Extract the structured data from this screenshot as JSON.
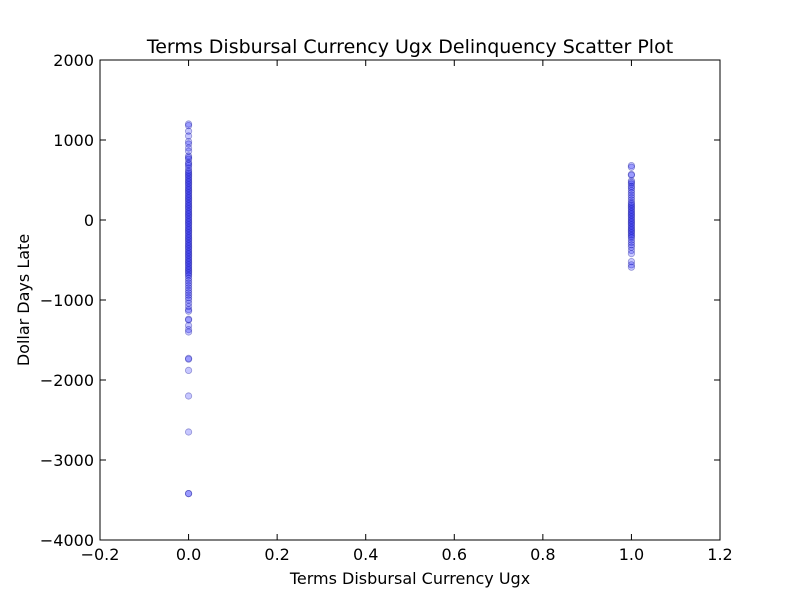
{
  "chart_data": {
    "type": "scatter",
    "title": "Terms Disbursal Currency Ugx Delinquency Scatter Plot",
    "xlabel": "Terms Disbursal Currency Ugx",
    "ylabel": "Dollar Days Late",
    "xlim": [
      -0.2,
      1.2
    ],
    "ylim": [
      -4000,
      2000
    ],
    "x_ticks": [
      -0.2,
      0.0,
      0.2,
      0.4,
      0.6,
      0.8,
      1.0,
      1.2
    ],
    "x_tick_labels": [
      "−0.2",
      "0.0",
      "0.2",
      "0.4",
      "0.6",
      "0.8",
      "1.0",
      "1.2"
    ],
    "y_ticks": [
      -4000,
      -3000,
      -2000,
      -1000,
      0,
      1000,
      2000
    ],
    "y_tick_labels": [
      "−4000",
      "−3000",
      "−2000",
      "−1000",
      "0",
      "1000",
      "2000"
    ],
    "grid": false,
    "marker_color": "#0000ff",
    "marker_edge_color": "#00008b",
    "marker_opacity": 0.22,
    "series": [
      {
        "values": [
          {
            "x": 0,
            "y": 1200
          },
          {
            "x": 0,
            "y": 1180
          },
          {
            "x": 0,
            "y": 1110
          },
          {
            "x": 0,
            "y": 1050
          },
          {
            "x": 0,
            "y": 980
          },
          {
            "x": 0,
            "y": 950
          },
          {
            "x": 0,
            "y": 900
          },
          {
            "x": 0,
            "y": 860
          },
          {
            "x": 0,
            "y": 800
          },
          {
            "x": 0,
            "y": 780
          },
          {
            "x": 0,
            "y": 760
          },
          {
            "x": 0,
            "y": 720
          },
          {
            "x": 0,
            "y": 700
          },
          {
            "x": 0,
            "y": 680
          },
          {
            "x": 0,
            "y": 650
          },
          {
            "x": 0,
            "y": 620
          },
          {
            "x": 0,
            "y": 600
          },
          {
            "x": 0,
            "y": 580
          },
          {
            "x": 0,
            "y": 560
          },
          {
            "x": 0,
            "y": 540
          },
          {
            "x": 0,
            "y": 520
          },
          {
            "x": 0,
            "y": 500
          },
          {
            "x": 0,
            "y": 480
          },
          {
            "x": 0,
            "y": 460
          },
          {
            "x": 0,
            "y": 440
          },
          {
            "x": 0,
            "y": 420
          },
          {
            "x": 0,
            "y": 400
          },
          {
            "x": 0,
            "y": 380
          },
          {
            "x": 0,
            "y": 360
          },
          {
            "x": 0,
            "y": 340
          },
          {
            "x": 0,
            "y": 320
          },
          {
            "x": 0,
            "y": 300
          },
          {
            "x": 0,
            "y": 280
          },
          {
            "x": 0,
            "y": 260
          },
          {
            "x": 0,
            "y": 240
          },
          {
            "x": 0,
            "y": 220
          },
          {
            "x": 0,
            "y": 200
          },
          {
            "x": 0,
            "y": 180
          },
          {
            "x": 0,
            "y": 160
          },
          {
            "x": 0,
            "y": 140
          },
          {
            "x": 0,
            "y": 120
          },
          {
            "x": 0,
            "y": 100
          },
          {
            "x": 0,
            "y": 80
          },
          {
            "x": 0,
            "y": 60
          },
          {
            "x": 0,
            "y": 40
          },
          {
            "x": 0,
            "y": 20
          },
          {
            "x": 0,
            "y": 0
          },
          {
            "x": 0,
            "y": -20
          },
          {
            "x": 0,
            "y": -40
          },
          {
            "x": 0,
            "y": -60
          },
          {
            "x": 0,
            "y": -80
          },
          {
            "x": 0,
            "y": -100
          },
          {
            "x": 0,
            "y": -120
          },
          {
            "x": 0,
            "y": -140
          },
          {
            "x": 0,
            "y": -160
          },
          {
            "x": 0,
            "y": -180
          },
          {
            "x": 0,
            "y": -200
          },
          {
            "x": 0,
            "y": -220
          },
          {
            "x": 0,
            "y": -240
          },
          {
            "x": 0,
            "y": -260
          },
          {
            "x": 0,
            "y": -280
          },
          {
            "x": 0,
            "y": -300
          },
          {
            "x": 0,
            "y": -320
          },
          {
            "x": 0,
            "y": -340
          },
          {
            "x": 0,
            "y": -360
          },
          {
            "x": 0,
            "y": -380
          },
          {
            "x": 0,
            "y": -400
          },
          {
            "x": 0,
            "y": -420
          },
          {
            "x": 0,
            "y": -440
          },
          {
            "x": 0,
            "y": -460
          },
          {
            "x": 0,
            "y": -480
          },
          {
            "x": 0,
            "y": -500
          },
          {
            "x": 0,
            "y": -520
          },
          {
            "x": 0,
            "y": -540
          },
          {
            "x": 0,
            "y": -560
          },
          {
            "x": 0,
            "y": -580
          },
          {
            "x": 0,
            "y": -600
          },
          {
            "x": 0,
            "y": -620
          },
          {
            "x": 0,
            "y": -640
          },
          {
            "x": 0,
            "y": -660
          },
          {
            "x": 0,
            "y": -680
          },
          {
            "x": 0,
            "y": -700
          },
          {
            "x": 0,
            "y": -730
          },
          {
            "x": 0,
            "y": -760
          },
          {
            "x": 0,
            "y": -790
          },
          {
            "x": 0,
            "y": -820
          },
          {
            "x": 0,
            "y": -850
          },
          {
            "x": 0,
            "y": -880
          },
          {
            "x": 0,
            "y": -910
          },
          {
            "x": 0,
            "y": -940
          },
          {
            "x": 0,
            "y": -970
          },
          {
            "x": 0,
            "y": -1000
          },
          {
            "x": 0,
            "y": -1040
          },
          {
            "x": 0,
            "y": -1080
          },
          {
            "x": 0,
            "y": -1120
          },
          {
            "x": 0,
            "y": -1140
          },
          {
            "x": 0,
            "y": -1240
          },
          {
            "x": 0,
            "y": -1250
          },
          {
            "x": 0,
            "y": -1320
          },
          {
            "x": 0,
            "y": -1370
          },
          {
            "x": 0,
            "y": -1400
          },
          {
            "x": 0,
            "y": -1730
          },
          {
            "x": 0,
            "y": -1740
          },
          {
            "x": 0,
            "y": -1880
          },
          {
            "x": 0,
            "y": -2200
          },
          {
            "x": 0,
            "y": -2650
          },
          {
            "x": 0,
            "y": -3420
          },
          {
            "x": 0,
            "y": -3420
          },
          {
            "x": 1,
            "y": 680
          },
          {
            "x": 1,
            "y": 660
          },
          {
            "x": 1,
            "y": 570
          },
          {
            "x": 1,
            "y": 560
          },
          {
            "x": 1,
            "y": 490
          },
          {
            "x": 1,
            "y": 470
          },
          {
            "x": 1,
            "y": 450
          },
          {
            "x": 1,
            "y": 420
          },
          {
            "x": 1,
            "y": 400
          },
          {
            "x": 1,
            "y": 370
          },
          {
            "x": 1,
            "y": 340
          },
          {
            "x": 1,
            "y": 310
          },
          {
            "x": 1,
            "y": 280
          },
          {
            "x": 1,
            "y": 250
          },
          {
            "x": 1,
            "y": 220
          },
          {
            "x": 1,
            "y": 200
          },
          {
            "x": 1,
            "y": 180
          },
          {
            "x": 1,
            "y": 160
          },
          {
            "x": 1,
            "y": 140
          },
          {
            "x": 1,
            "y": 120
          },
          {
            "x": 1,
            "y": 100
          },
          {
            "x": 1,
            "y": 80
          },
          {
            "x": 1,
            "y": 60
          },
          {
            "x": 1,
            "y": 40
          },
          {
            "x": 1,
            "y": 20
          },
          {
            "x": 1,
            "y": 0
          },
          {
            "x": 1,
            "y": -20
          },
          {
            "x": 1,
            "y": -40
          },
          {
            "x": 1,
            "y": -60
          },
          {
            "x": 1,
            "y": -80
          },
          {
            "x": 1,
            "y": -100
          },
          {
            "x": 1,
            "y": -120
          },
          {
            "x": 1,
            "y": -140
          },
          {
            "x": 1,
            "y": -160
          },
          {
            "x": 1,
            "y": -180
          },
          {
            "x": 1,
            "y": -200
          },
          {
            "x": 1,
            "y": -220
          },
          {
            "x": 1,
            "y": -250
          },
          {
            "x": 1,
            "y": -280
          },
          {
            "x": 1,
            "y": -310
          },
          {
            "x": 1,
            "y": -340
          },
          {
            "x": 1,
            "y": -380
          },
          {
            "x": 1,
            "y": -420
          },
          {
            "x": 1,
            "y": -520
          },
          {
            "x": 1,
            "y": -560
          },
          {
            "x": 1,
            "y": -590
          }
        ]
      }
    ]
  }
}
